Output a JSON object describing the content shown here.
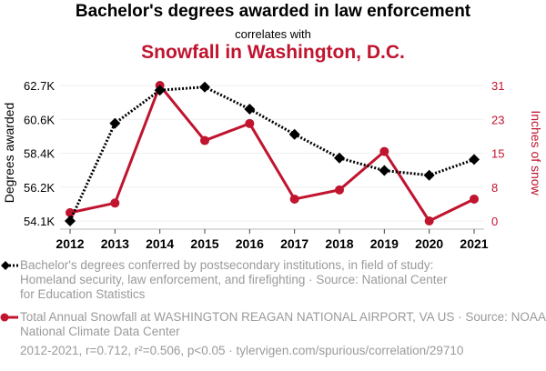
{
  "header": {
    "title": "Bachelor's degrees awarded in law enforcement",
    "subtitle": "correlates with",
    "title2": "Snowfall in Washington, D.C."
  },
  "chart_data": {
    "type": "line",
    "title": "Bachelor's degrees awarded in law enforcement correlates with Snowfall in Washington, D.C.",
    "x": [
      "2012",
      "2013",
      "2014",
      "2015",
      "2016",
      "2017",
      "2018",
      "2019",
      "2020",
      "2021"
    ],
    "y_left": {
      "label": "Degrees awarded",
      "ticks": [
        "54.1K",
        "56.2K",
        "58.4K",
        "60.6K",
        "62.7K"
      ],
      "range": [
        54100,
        62700
      ]
    },
    "y_right": {
      "label": "Inches of snow",
      "ticks": [
        "0",
        "8",
        "15",
        "23",
        "31"
      ],
      "range": [
        0,
        31
      ]
    },
    "grid": true,
    "series": [
      {
        "name": "Bachelor's degrees conferred by postsecondary institutions, in field of study: Homeland security, law enforcement, and firefighting",
        "axis": "left",
        "color": "#000000",
        "style": "dotted",
        "marker": "diamond",
        "values": [
          54100,
          60300,
          62400,
          62600,
          61200,
          59600,
          58100,
          57300,
          57000,
          58000
        ]
      },
      {
        "name": "Total Annual Snowfall at WASHINGTON REAGAN NATIONAL AIRPORT, VA US",
        "axis": "right",
        "color": "#c0142f",
        "style": "solid",
        "marker": "circle",
        "values": [
          1.9,
          4.1,
          31,
          18.4,
          22.3,
          5.0,
          7.1,
          15.9,
          0,
          5.0
        ]
      }
    ]
  },
  "legend": {
    "series1": "Bachelor's degrees conferred by postsecondary institutions, in field of study: Homeland security, law enforcement, and firefighting · Source: National Center for Education Statistics",
    "series2": "Total Annual Snowfall at WASHINGTON REAGAN NATIONAL AIRPORT, VA US · Source: NOAA National Climate Data Center"
  },
  "footer": "2012-2021, r=0.712, r²=0.506, p<0.05 · tylervigen.com/spurious/correlation/29710",
  "colors": {
    "accent": "#c0142f",
    "primary": "#000000",
    "muted": "#9a9a9a"
  }
}
